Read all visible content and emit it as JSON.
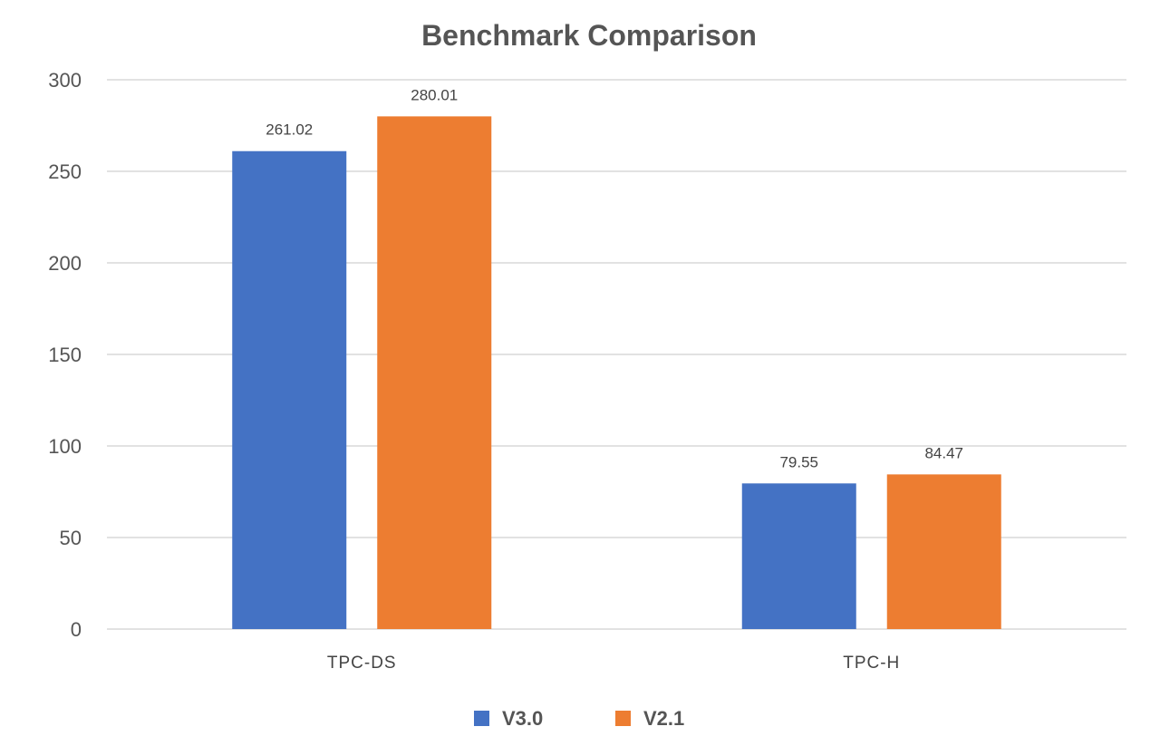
{
  "chart_data": {
    "type": "bar",
    "title": "Benchmark Comparison",
    "categories": [
      "TPC-DS",
      "TPC-H"
    ],
    "series": [
      {
        "name": "V3.0",
        "values": [
          261.02,
          79.55
        ],
        "color": "#4472C4"
      },
      {
        "name": "V2.1",
        "values": [
          280.01,
          84.47
        ],
        "color": "#ED7D31"
      }
    ],
    "xlabel": "",
    "ylabel": "",
    "ylim": [
      0,
      300
    ],
    "yticks": [
      "0",
      "50",
      "100",
      "150",
      "200",
      "250",
      "300"
    ],
    "data_labels": [
      [
        "261.02",
        "79.55"
      ],
      [
        "280.01",
        "84.47"
      ]
    ],
    "grid": true,
    "legend": "bottom"
  }
}
